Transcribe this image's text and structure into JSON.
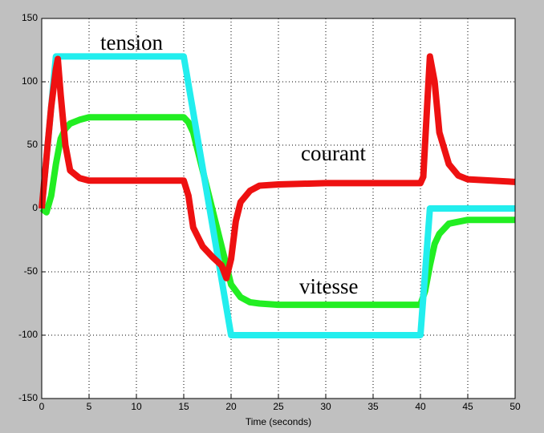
{
  "chart_data": {
    "type": "line",
    "x_label": "Time (seconds)",
    "xlim": [
      0,
      50
    ],
    "ylim": [
      -150,
      150
    ],
    "xticks": [
      0,
      5,
      10,
      15,
      20,
      25,
      30,
      35,
      40,
      45,
      50
    ],
    "yticks": [
      -150,
      -100,
      -50,
      0,
      50,
      100,
      150
    ],
    "grid": true,
    "series": [
      {
        "name": "vitesse",
        "color": "#22ee22",
        "x": [
          0,
          0.5,
          1,
          1.5,
          2,
          2.5,
          3,
          4,
          5,
          10,
          15,
          15.5,
          16,
          17,
          18,
          19,
          20,
          21,
          22,
          23,
          25,
          30,
          40,
          40.5,
          41,
          41.5,
          42,
          43,
          45,
          50
        ],
        "values": [
          0,
          -3,
          10,
          35,
          55,
          63,
          67,
          70,
          72,
          72,
          72,
          68,
          60,
          30,
          0,
          -30,
          -60,
          -70,
          -74,
          -75,
          -76,
          -76,
          -76,
          -65,
          -45,
          -28,
          -20,
          -12,
          -9,
          -9
        ]
      },
      {
        "name": "tension",
        "color": "#22eeee",
        "x": [
          0,
          1.5,
          15,
          20,
          40,
          41,
          50
        ],
        "values": [
          0,
          120,
          120,
          -100,
          -100,
          0,
          0
        ]
      },
      {
        "name": "courant",
        "color": "#ee1111",
        "x": [
          0,
          0.5,
          1,
          1.5,
          1.7,
          2,
          2.5,
          3,
          4,
          5,
          15,
          15.5,
          16,
          17,
          18,
          19,
          19.5,
          20,
          20.5,
          21,
          22,
          23,
          25,
          30,
          40,
          40.3,
          40.7,
          41,
          41.5,
          42,
          43,
          44,
          45,
          50
        ],
        "values": [
          0,
          40,
          80,
          110,
          118,
          90,
          50,
          30,
          24,
          22,
          22,
          10,
          -15,
          -30,
          -38,
          -45,
          -55,
          -40,
          -10,
          5,
          14,
          18,
          19,
          20,
          20,
          25,
          80,
          120,
          100,
          60,
          35,
          26,
          23,
          21
        ]
      }
    ],
    "annotations": [
      {
        "text": "tension",
        "color": "#007000"
      },
      {
        "text": "courant",
        "color": "#ee1111"
      },
      {
        "text": "vitesse",
        "color": "#ee1111"
      }
    ]
  }
}
